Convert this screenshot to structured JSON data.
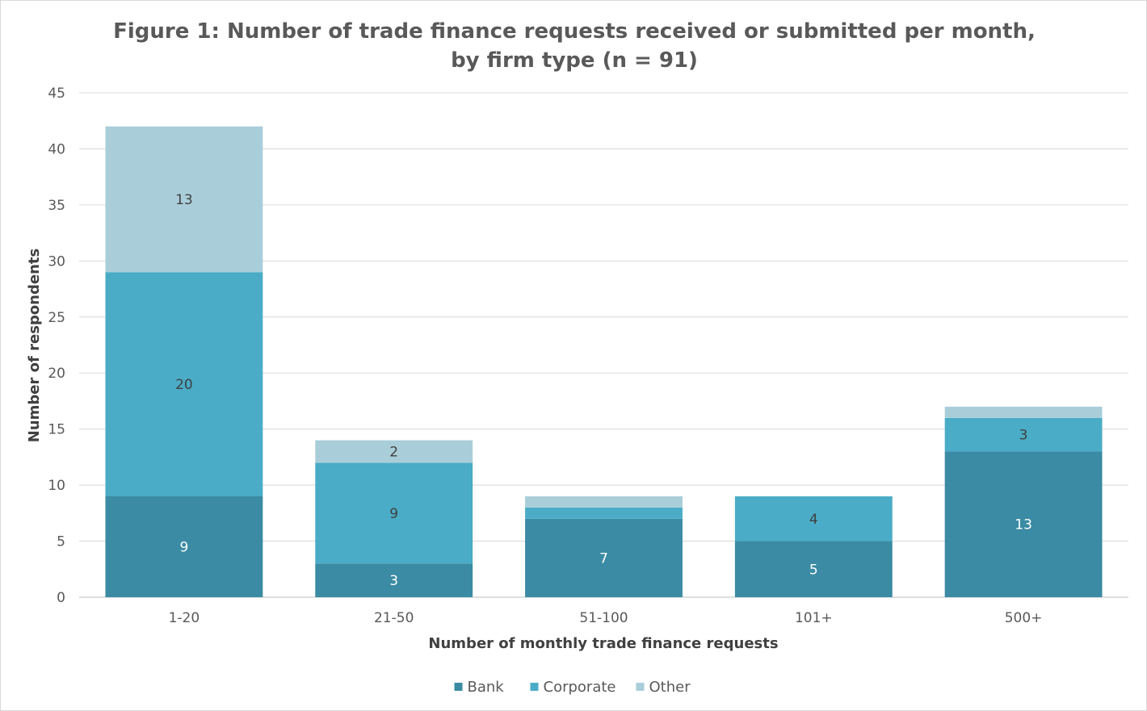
{
  "chart_data": {
    "type": "bar",
    "stacked": true,
    "title_line1": "Figure 1: Number of trade finance requests received or submitted per month,",
    "title_line2": "by firm type (n = 91)",
    "xlabel": "Number of monthly trade finance requests",
    "ylabel": "Number of respondents",
    "categories": [
      "1-20",
      "21-50",
      "51-100",
      "101+",
      "500+"
    ],
    "series": [
      {
        "name": "Bank",
        "color": "#3a8ba3",
        "label_color": "#ffffff",
        "values": [
          9,
          3,
          7,
          5,
          13
        ],
        "labels": [
          "9",
          "3",
          "7",
          "5",
          "13"
        ]
      },
      {
        "name": "Corporate",
        "color": "#4aacc6",
        "label_color": "#404040",
        "values": [
          20,
          9,
          1,
          4,
          3
        ],
        "labels": [
          "20",
          "9",
          "",
          "4",
          "3"
        ]
      },
      {
        "name": "Other",
        "color": "#a9ceda",
        "label_color": "#404040",
        "values": [
          13,
          2,
          1,
          0,
          1
        ],
        "labels": [
          "13",
          "2",
          "",
          "",
          ""
        ]
      }
    ],
    "ylim": [
      0,
      45
    ],
    "yticks": [
      0,
      5,
      10,
      15,
      20,
      25,
      30,
      35,
      40,
      45
    ],
    "grid": true,
    "legend_position": "bottom"
  }
}
